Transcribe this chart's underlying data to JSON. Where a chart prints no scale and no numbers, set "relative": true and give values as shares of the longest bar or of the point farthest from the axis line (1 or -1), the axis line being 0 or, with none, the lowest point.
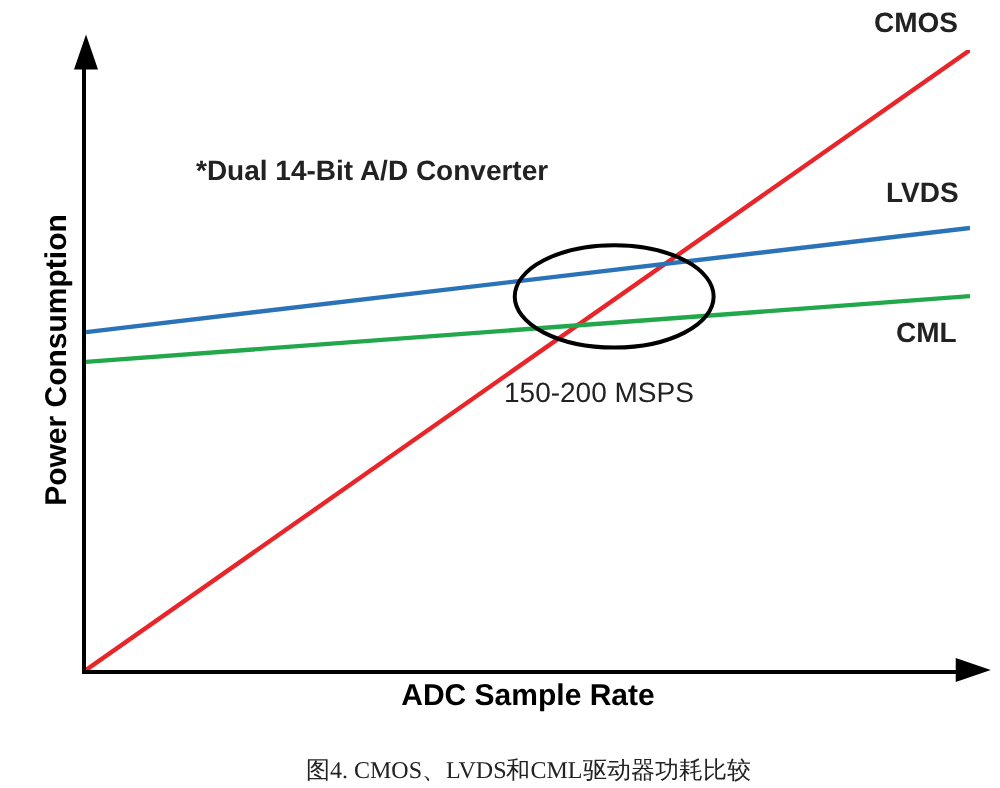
{
  "chart_data": {
    "type": "line",
    "relative": true,
    "xlabel": "ADC Sample Rate",
    "ylabel": "Power Consumption",
    "categories": [
      null,
      null
    ],
    "series": [
      {
        "name": "CMOS",
        "color": "#e8262a",
        "values": [
          0,
          1
        ]
      },
      {
        "name": "LVDS",
        "color": "#2a73b8",
        "values": [
          0.545,
          0.713
        ]
      },
      {
        "name": "CML",
        "color": "#22a84a",
        "values": [
          0.497,
          0.603
        ]
      }
    ],
    "annotations": [
      "*Dual 14-Bit A/D Converter",
      "150-200 MSPS",
      "图4. CMOS、LVDS和CML驱动器功耗比较"
    ],
    "legend": false,
    "marker": "none",
    "line_style": "solid"
  }
}
